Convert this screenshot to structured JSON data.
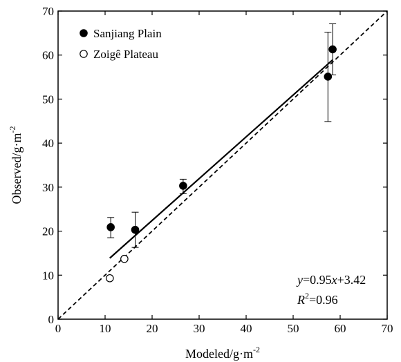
{
  "chart_data": {
    "type": "scatter",
    "xlabel": "Modeled/g·m",
    "xlabel_sup": "-2",
    "ylabel": "Observed/g·m",
    "ylabel_sup": "-2",
    "xlim": [
      0,
      70
    ],
    "ylim": [
      0,
      70
    ],
    "xticks": [
      "0",
      "10",
      "20",
      "30",
      "40",
      "50",
      "60",
      "70"
    ],
    "yticks": [
      "0",
      "10",
      "20",
      "30",
      "40",
      "50",
      "60",
      "70"
    ],
    "grid": false,
    "legend_position": "top-left",
    "series": [
      {
        "name": "Sanjiang Plain",
        "marker": "filled-circle",
        "points": [
          {
            "x": 11.2,
            "y": 20.9,
            "err_low": 18.5,
            "err_high": 23.1
          },
          {
            "x": 16.4,
            "y": 20.3,
            "err_low": 16.3,
            "err_high": 24.3
          },
          {
            "x": 26.6,
            "y": 30.3,
            "err_low": 28.5,
            "err_high": 31.8
          },
          {
            "x": 57.4,
            "y": 55.1,
            "err_low": 44.9,
            "err_high": 65.2
          },
          {
            "x": 58.4,
            "y": 61.3,
            "err_low": 55.5,
            "err_high": 67.1
          }
        ]
      },
      {
        "name": "Zoigê Plateau",
        "marker": "open-circle",
        "points": [
          {
            "x": 11.0,
            "y": 9.3
          },
          {
            "x": 14.1,
            "y": 13.7
          }
        ]
      }
    ],
    "fit_line": {
      "slope": 0.95,
      "intercept": 3.42,
      "x_range": [
        11.0,
        58.4
      ]
    },
    "reference_line": {
      "slope": 1,
      "intercept": 0
    },
    "annotation": {
      "eq_y": "y",
      "eq_rest": "=0.95",
      "eq_x": "x",
      "eq_tail": "+3.42",
      "r2_R": "R",
      "r2_sup": "2",
      "r2_rest": "=0.96"
    }
  }
}
